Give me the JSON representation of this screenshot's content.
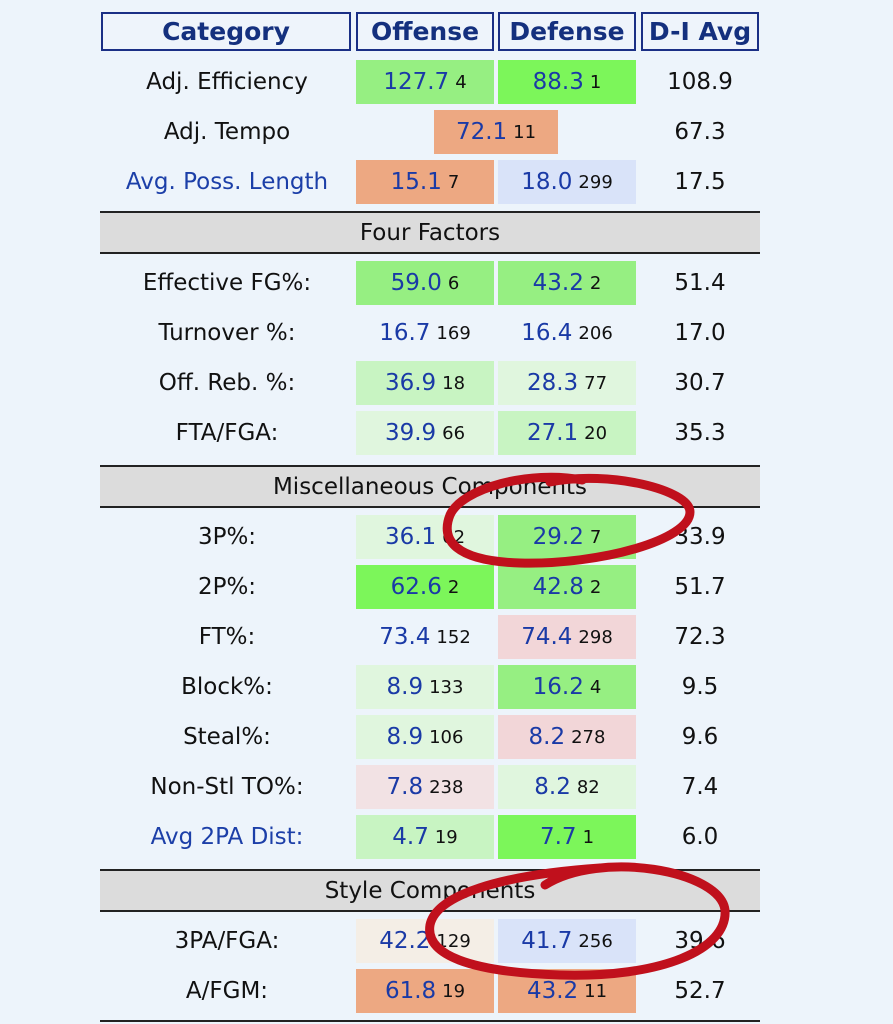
{
  "headers": [
    "Category",
    "Offense",
    "Defense",
    "D-I Avg"
  ],
  "colors": {
    "green_strong": "#7cf65a",
    "green": "#96ef82",
    "green_light": "#c8f4c2",
    "green_pale": "#e0f6de",
    "orange": "#eda882",
    "blue_light": "#d9e3f9",
    "pink": "#f2d6d8",
    "pink_pale": "#f2e2e4",
    "cream": "#f4eee6",
    "neutral": "#edf4fb",
    "annotation_red": "#c0101c"
  },
  "sections": [
    {
      "title": "",
      "rows": [
        {
          "label": "Adj. Efficiency",
          "off": "127.7",
          "off_rank": "4",
          "def": "88.3",
          "def_rank": "1",
          "avg": "108.9",
          "off_color": "green",
          "def_color": "green_strong"
        },
        {
          "label": "Adj. Tempo",
          "tempo": "72.1",
          "tempo_rank": "11",
          "avg": "67.3",
          "tempo_color": "orange"
        },
        {
          "label": "Avg. Poss. Length",
          "link": true,
          "off": "15.1",
          "off_rank": "7",
          "def": "18.0",
          "def_rank": "299",
          "avg": "17.5",
          "off_color": "orange",
          "def_color": "blue_light"
        }
      ]
    },
    {
      "title": "Four Factors",
      "rows": [
        {
          "label": "Effective FG%:",
          "off": "59.0",
          "off_rank": "6",
          "def": "43.2",
          "def_rank": "2",
          "avg": "51.4",
          "off_color": "green",
          "def_color": "green"
        },
        {
          "label": "Turnover %:",
          "off": "16.7",
          "off_rank": "169",
          "def": "16.4",
          "def_rank": "206",
          "avg": "17.0",
          "off_color": "neutral",
          "def_color": "neutral"
        },
        {
          "label": "Off. Reb. %:",
          "off": "36.9",
          "off_rank": "18",
          "def": "28.3",
          "def_rank": "77",
          "avg": "30.7",
          "off_color": "green_light",
          "def_color": "green_pale"
        },
        {
          "label": "FTA/FGA:",
          "off": "39.9",
          "off_rank": "66",
          "def": "27.1",
          "def_rank": "20",
          "avg": "35.3",
          "off_color": "green_pale",
          "def_color": "green_light"
        }
      ]
    },
    {
      "title": "Miscellaneous Components",
      "rows": [
        {
          "label": "3P%:",
          "off": "36.1",
          "off_rank": "62",
          "def": "29.2",
          "def_rank": "7",
          "avg": "33.9",
          "off_color": "green_pale",
          "def_color": "green"
        },
        {
          "label": "2P%:",
          "off": "62.6",
          "off_rank": "2",
          "def": "42.8",
          "def_rank": "2",
          "avg": "51.7",
          "off_color": "green_strong",
          "def_color": "green"
        },
        {
          "label": "FT%:",
          "off": "73.4",
          "off_rank": "152",
          "def": "74.4",
          "def_rank": "298",
          "avg": "72.3",
          "off_color": "neutral",
          "def_color": "pink"
        },
        {
          "label": "Block%:",
          "off": "8.9",
          "off_rank": "133",
          "def": "16.2",
          "def_rank": "4",
          "avg": "9.5",
          "off_color": "green_pale",
          "def_color": "green"
        },
        {
          "label": "Steal%:",
          "off": "8.9",
          "off_rank": "106",
          "def": "8.2",
          "def_rank": "278",
          "avg": "9.6",
          "off_color": "green_pale",
          "def_color": "pink"
        },
        {
          "label": "Non-Stl TO%:",
          "off": "7.8",
          "off_rank": "238",
          "def": "8.2",
          "def_rank": "82",
          "avg": "7.4",
          "off_color": "pink_pale",
          "def_color": "green_pale"
        },
        {
          "label": "Avg 2PA Dist:",
          "link": true,
          "off": "4.7",
          "off_rank": "19",
          "def": "7.7",
          "def_rank": "1",
          "avg": "6.0",
          "off_color": "green_light",
          "def_color": "green_strong"
        }
      ]
    },
    {
      "title": "Style Components",
      "rows": [
        {
          "label": "3PA/FGA:",
          "off": "42.2",
          "off_rank": "129",
          "def": "41.7",
          "def_rank": "256",
          "avg": "39.6",
          "off_color": "cream",
          "def_color": "blue_light"
        },
        {
          "label": "A/FGM:",
          "off": "61.8",
          "off_rank": "19",
          "def": "43.2",
          "def_rank": "11",
          "avg": "52.7",
          "off_color": "orange",
          "def_color": "orange"
        }
      ]
    }
  ]
}
